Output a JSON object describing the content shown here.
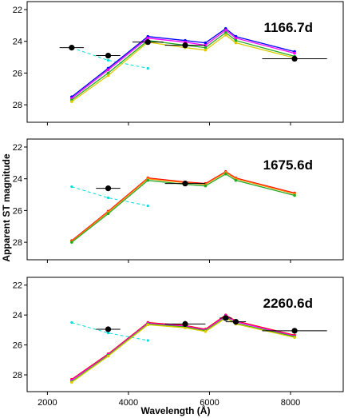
{
  "chart_data": {
    "type": "line",
    "xlabel": "Wavelength (Å)",
    "ylabel": "Apparent ST magnitude",
    "xlim": [
      1500,
      9300
    ],
    "ylim": [
      28.8,
      21.8
    ],
    "y_inverted": true,
    "x_ticks": [
      2000,
      4000,
      6000,
      8000
    ],
    "y_ticks": [
      22,
      24,
      26,
      28
    ],
    "panels": [
      {
        "label": "1166.7d",
        "observed": [
          {
            "x": 2600,
            "y": 24.4,
            "xerr": 300,
            "yerr": 0.05
          },
          {
            "x": 3500,
            "y": 24.9,
            "xerr": 300,
            "yerr": 0.1
          },
          {
            "x": 4480,
            "y": 24.05,
            "xerr": 380,
            "yerr": 0.1
          },
          {
            "x": 5400,
            "y": 24.25,
            "xerr": 500,
            "yerr": 0.15
          },
          {
            "x": 8100,
            "y": 25.1,
            "xerr": 800,
            "yerr": 0.05
          }
        ],
        "dashed": {
          "x": [
            2600,
            3500,
            4480
          ],
          "y": [
            24.4,
            25.2,
            25.7
          ]
        },
        "models": [
          {
            "color": "#0000ff",
            "x": [
              2600,
              3500,
              4480,
              5400,
              5900,
              6400,
              6650,
              8100
            ],
            "y": [
              27.5,
              25.7,
              23.7,
              23.95,
              24.1,
              23.2,
              23.7,
              24.65
            ]
          },
          {
            "color": "#ff00ff",
            "x": [
              2600,
              3500,
              4480,
              5400,
              5900,
              6400,
              6650,
              8100
            ],
            "y": [
              27.6,
              25.8,
              23.8,
              24.05,
              24.25,
              23.3,
              23.8,
              24.75
            ]
          },
          {
            "color": "#22aa22",
            "x": [
              2600,
              3500,
              4480,
              5400,
              5900,
              6400,
              6650,
              8100
            ],
            "y": [
              27.7,
              26.0,
              23.95,
              24.25,
              24.4,
              23.45,
              23.95,
              24.95
            ]
          },
          {
            "color": "#ddcc00",
            "x": [
              2600,
              3500,
              4480,
              5400,
              5900,
              6400,
              6650,
              8100
            ],
            "y": [
              27.8,
              26.15,
              24.05,
              24.4,
              24.55,
              23.6,
              24.1,
              25.05
            ]
          }
        ]
      },
      {
        "label": "1675.6d",
        "observed": [
          {
            "x": 3500,
            "y": 24.6,
            "xerr": 300,
            "yerr": 0.1
          },
          {
            "x": 5400,
            "y": 24.3,
            "xerr": 500,
            "yerr": 0.15
          }
        ],
        "dashed": {
          "x": [
            2600,
            3500,
            4480
          ],
          "y": [
            24.5,
            25.2,
            25.7
          ]
        },
        "models": [
          {
            "color": "#ff0000",
            "x": [
              2600,
              3500,
              4480,
              5400,
              5900,
              6400,
              6650,
              8100
            ],
            "y": [
              27.9,
              26.05,
              23.95,
              24.2,
              24.3,
              23.55,
              23.95,
              24.9
            ]
          },
          {
            "color": "#ff8800",
            "x": [
              2600,
              3500,
              4480,
              5400,
              5900,
              6400,
              6650,
              8100
            ],
            "y": [
              27.95,
              26.1,
              24.0,
              24.25,
              24.35,
              23.6,
              24.0,
              24.95
            ]
          },
          {
            "color": "#22aa22",
            "x": [
              2600,
              3500,
              4480,
              5400,
              5900,
              6400,
              6650,
              8100
            ],
            "y": [
              28.0,
              26.2,
              24.1,
              24.35,
              24.45,
              23.7,
              24.1,
              25.05
            ]
          }
        ]
      },
      {
        "label": "2260.6d",
        "observed": [
          {
            "x": 3500,
            "y": 24.95,
            "xerr": 300,
            "yerr": 0.1
          },
          {
            "x": 5400,
            "y": 24.6,
            "xerr": 500,
            "yerr": 0.2
          },
          {
            "x": 6400,
            "y": 24.2,
            "xerr": 150,
            "yerr": 0.15
          },
          {
            "x": 6650,
            "y": 24.45,
            "xerr": 250,
            "yerr": 0.1
          },
          {
            "x": 8100,
            "y": 25.05,
            "xerr": 800,
            "yerr": 0.05
          }
        ],
        "dashed": {
          "x": [
            2600,
            3500,
            4480
          ],
          "y": [
            24.5,
            25.2,
            25.7
          ]
        },
        "models": [
          {
            "color": "#ff0000",
            "x": [
              2600,
              3500,
              4480,
              5400,
              5900,
              6400,
              6650,
              8100
            ],
            "y": [
              28.3,
              26.6,
              24.5,
              24.7,
              24.95,
              24.0,
              24.4,
              25.35
            ]
          },
          {
            "color": "#ff00ff",
            "x": [
              2600,
              3500,
              4480,
              5400,
              5900,
              6400,
              6650,
              8100
            ],
            "y": [
              28.35,
              26.65,
              24.55,
              24.75,
              25.0,
              24.05,
              24.45,
              25.4
            ]
          },
          {
            "color": "#22aa22",
            "x": [
              2600,
              3500,
              4480,
              5400,
              5900,
              6400,
              6650,
              8100
            ],
            "y": [
              28.45,
              26.7,
              24.6,
              24.8,
              25.05,
              24.15,
              24.55,
              25.45
            ]
          },
          {
            "color": "#ddcc00",
            "x": [
              2600,
              3500,
              4480,
              5400,
              5900,
              6400,
              6650,
              8100
            ],
            "y": [
              28.5,
              26.75,
              24.65,
              24.85,
              25.1,
              24.2,
              24.6,
              25.5
            ]
          }
        ]
      }
    ],
    "dashed_color": "#00dddd",
    "observed_color": "#000000"
  }
}
